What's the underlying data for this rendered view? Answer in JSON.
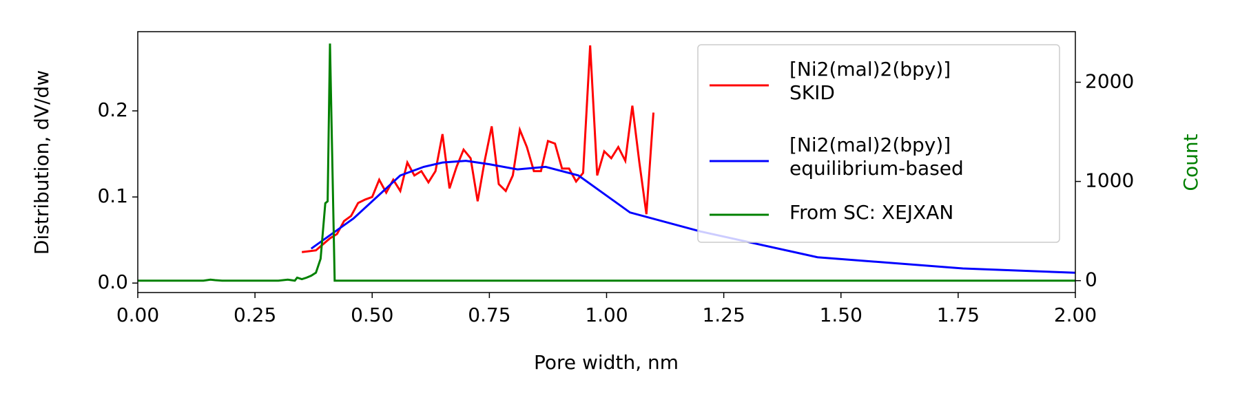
{
  "chart_data": {
    "type": "line",
    "xlabel": "Pore width, nm",
    "ylabel": "Distribution, dV/dw",
    "y2label": "Count",
    "y2label_color": "#008000",
    "xlim": [
      0,
      2
    ],
    "ylim": [
      -0.011,
      0.292
    ],
    "y2lim": [
      -120,
      2510
    ],
    "xticks": [
      {
        "value": 0,
        "label": "0.00"
      },
      {
        "value": 0.25,
        "label": "0.25"
      },
      {
        "value": 0.5,
        "label": "0.50"
      },
      {
        "value": 0.75,
        "label": "0.75"
      },
      {
        "value": 1,
        "label": "1.00"
      },
      {
        "value": 1.25,
        "label": "1.25"
      },
      {
        "value": 1.5,
        "label": "1.50"
      },
      {
        "value": 1.75,
        "label": "1.75"
      },
      {
        "value": 2,
        "label": "2.00"
      }
    ],
    "yticks": [
      {
        "value": 0,
        "label": "0.0"
      },
      0.1,
      0.2
    ],
    "y2ticks": [
      0,
      1000,
      2000
    ],
    "grid": false,
    "legend": "upper right",
    "series": [
      {
        "name": "[Ni2(mal)2(bpy)]\nSKID",
        "color": "#ff0000",
        "x": [
          0.35,
          0.365,
          0.38,
          0.395,
          0.41,
          0.425,
          0.44,
          0.455,
          0.47,
          0.485,
          0.5,
          0.515,
          0.53,
          0.545,
          0.56,
          0.575,
          0.59,
          0.605,
          0.62,
          0.635,
          0.65,
          0.665,
          0.68,
          0.695,
          0.71,
          0.725,
          0.74,
          0.755,
          0.77,
          0.785,
          0.8,
          0.815,
          0.83,
          0.845,
          0.86,
          0.875,
          0.89,
          0.905,
          0.92,
          0.935,
          0.95,
          0.965,
          0.98,
          0.995,
          1.01,
          1.025,
          1.04,
          1.055,
          1.07,
          1.085,
          1.1
        ],
        "values": [
          0.036,
          0.037,
          0.038,
          0.045,
          0.052,
          0.057,
          0.072,
          0.078,
          0.093,
          0.097,
          0.1,
          0.12,
          0.105,
          0.12,
          0.107,
          0.14,
          0.125,
          0.13,
          0.117,
          0.13,
          0.173,
          0.11,
          0.135,
          0.155,
          0.145,
          0.095,
          0.142,
          0.182,
          0.115,
          0.107,
          0.125,
          0.178,
          0.158,
          0.13,
          0.13,
          0.165,
          0.162,
          0.133,
          0.133,
          0.118,
          0.128,
          0.276,
          0.125,
          0.153,
          0.145,
          0.158,
          0.142,
          0.206,
          0.14,
          0.08,
          0.198
        ]
      },
      {
        "name": "[Ni2(mal)2(bpy)]\nequilibrium-based",
        "color": "#0000ff",
        "x": [
          0.37,
          0.46,
          0.56,
          0.61,
          0.65,
          0.7,
          0.75,
          0.81,
          0.87,
          0.94,
          1.05,
          1.2,
          1.45,
          1.76,
          2.0
        ],
        "values": [
          0.04,
          0.075,
          0.125,
          0.135,
          0.14,
          0.142,
          0.138,
          0.132,
          0.135,
          0.125,
          0.082,
          0.06,
          0.03,
          0.017,
          0.012
        ]
      },
      {
        "name": "From SC: XEJXAN",
        "color": "#008000",
        "axis": "y2",
        "x": [
          0,
          0.14,
          0.155,
          0.165,
          0.18,
          0.3,
          0.32,
          0.335,
          0.34,
          0.35,
          0.36,
          0.37,
          0.38,
          0.39,
          0.4,
          0.405,
          0.41,
          0.42,
          0.43,
          2.0
        ],
        "values": [
          0,
          0,
          10,
          5,
          0,
          0,
          10,
          0,
          30,
          15,
          30,
          50,
          80,
          220,
          780,
          800,
          2390,
          0,
          0,
          0
        ]
      }
    ]
  }
}
